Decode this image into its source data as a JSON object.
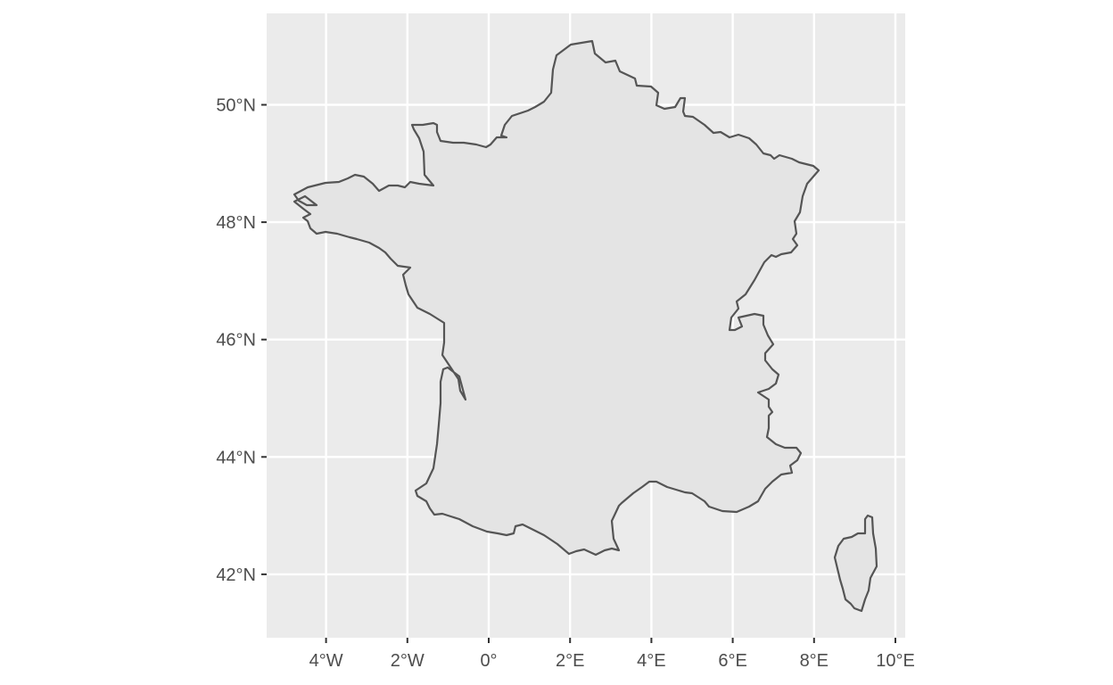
{
  "map": {
    "region": "France",
    "projection": "geographic",
    "panel_color": "#ebebeb",
    "grid_color": "#ffffff",
    "land_fill": "#e4e4e4",
    "outline_color": "#555555",
    "lon_range": [
      -5.5,
      10.5
    ],
    "lat_range": [
      41.0,
      51.6
    ],
    "x_ticks": [
      {
        "value": -4,
        "label": "4°W"
      },
      {
        "value": -2,
        "label": "2°W"
      },
      {
        "value": 0,
        "label": "0°"
      },
      {
        "value": 2,
        "label": "2°E"
      },
      {
        "value": 4,
        "label": "4°E"
      },
      {
        "value": 6,
        "label": "6°E"
      },
      {
        "value": 8,
        "label": "8°E"
      },
      {
        "value": 10,
        "label": "10°E"
      }
    ],
    "y_ticks": [
      {
        "value": 50,
        "label": "50°N"
      },
      {
        "value": 48,
        "label": "48°N"
      },
      {
        "value": 46,
        "label": "46°N"
      },
      {
        "value": 44,
        "label": "44°N"
      },
      {
        "value": 42,
        "label": "42°N"
      }
    ],
    "features": [
      {
        "name": "mainland-france"
      },
      {
        "name": "corsica"
      }
    ]
  }
}
